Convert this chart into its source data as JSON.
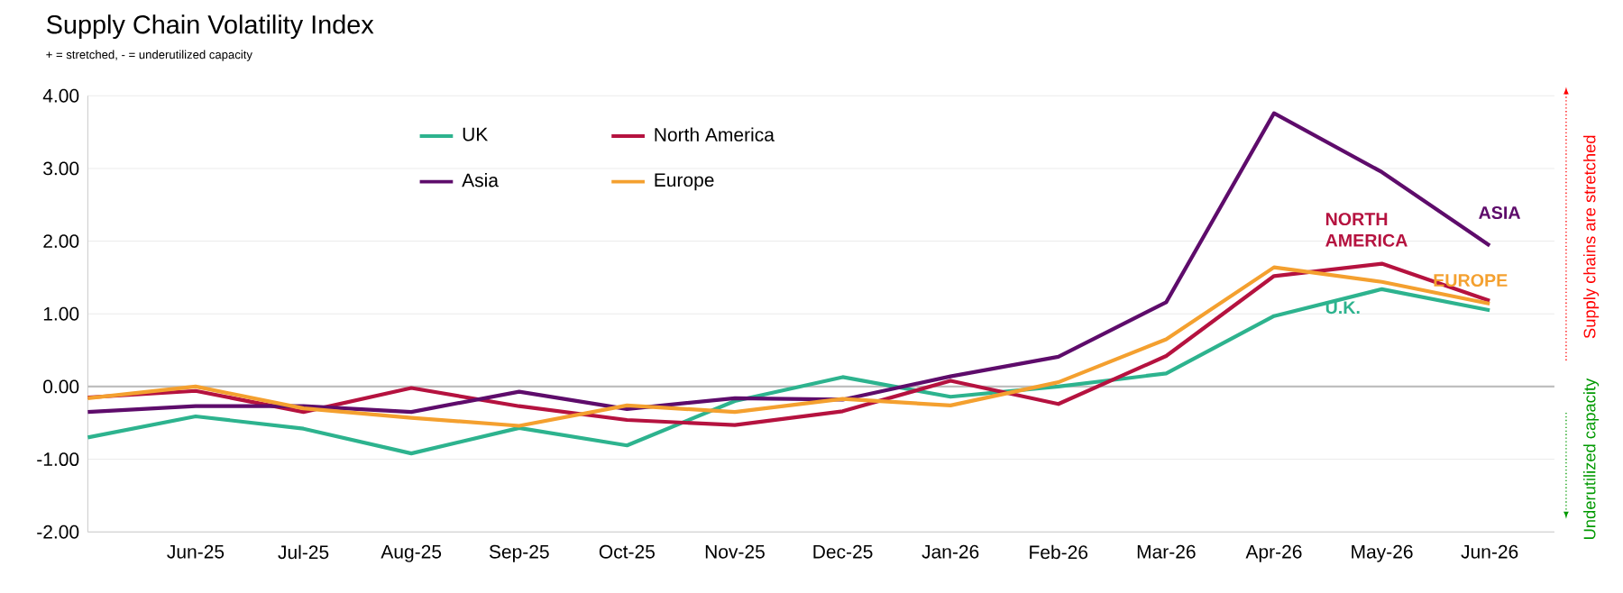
{
  "chart_data": {
    "type": "line",
    "title": "Supply Chain Volatility Index",
    "subtitle": "+ = stretched, - = underutilized capacity",
    "categories": [
      null,
      "Jun-25",
      "Jul-25",
      "Aug-25",
      "Sep-25",
      "Oct-25",
      "Nov-25",
      "Dec-25",
      "Jan-26",
      "Feb-26",
      "Mar-26",
      "Apr-26",
      "May-26",
      "Jun-26"
    ],
    "series": [
      {
        "name": "UK",
        "color": "#2db38e",
        "values": [
          -0.7,
          -0.41,
          -0.58,
          -0.92,
          -0.57,
          -0.81,
          -0.2,
          0.13,
          -0.14,
          0.0,
          0.18,
          0.97,
          1.34,
          1.05
        ]
      },
      {
        "name": "North America",
        "color": "#b5123f",
        "values": [
          -0.15,
          -0.06,
          -0.35,
          -0.02,
          -0.27,
          -0.46,
          -0.53,
          -0.34,
          0.08,
          -0.24,
          0.42,
          1.52,
          1.69,
          1.18
        ]
      },
      {
        "name": "Asia",
        "color": "#5e0c6b",
        "values": [
          -0.35,
          -0.27,
          -0.27,
          -0.35,
          -0.07,
          -0.31,
          -0.16,
          -0.18,
          0.14,
          0.41,
          1.16,
          3.76,
          2.95,
          1.94
        ]
      },
      {
        "name": "Europe",
        "color": "#f4a02f",
        "values": [
          -0.16,
          0.0,
          -0.3,
          -0.43,
          -0.54,
          -0.26,
          -0.35,
          -0.17,
          -0.26,
          0.06,
          0.65,
          1.64,
          1.44,
          1.14
        ]
      }
    ],
    "ylim": [
      -2,
      4
    ],
    "yticks": [
      {
        "value": -2,
        "label": "-2.00"
      },
      {
        "value": -1,
        "label": "-1.00"
      },
      {
        "value": 0,
        "label": "0.00"
      },
      {
        "value": 1,
        "label": "1.00"
      },
      {
        "value": 2,
        "label": "2.00"
      },
      {
        "value": 3,
        "label": "3.00"
      },
      {
        "value": 4,
        "label": "4.00"
      }
    ],
    "grid": "y",
    "legend": "top",
    "marker": "none",
    "line_style": "solid",
    "ref_lines": [
      {
        "axis": "y",
        "value": 0,
        "color": "#bfbfbf"
      }
    ],
    "annotations": [
      {
        "text": "ASIA",
        "x": "Jun-26",
        "y": 1.94
      },
      {
        "text": "NORTH AMERICA",
        "x": "May-26",
        "y": 1.69
      },
      {
        "text": "EUROPE",
        "x": "Jun-26",
        "y": 1.14
      },
      {
        "text": "U.K.",
        "x": "May-26",
        "y": 1.34
      },
      "Supply chains are stretched",
      "Underutilized capacity"
    ]
  }
}
